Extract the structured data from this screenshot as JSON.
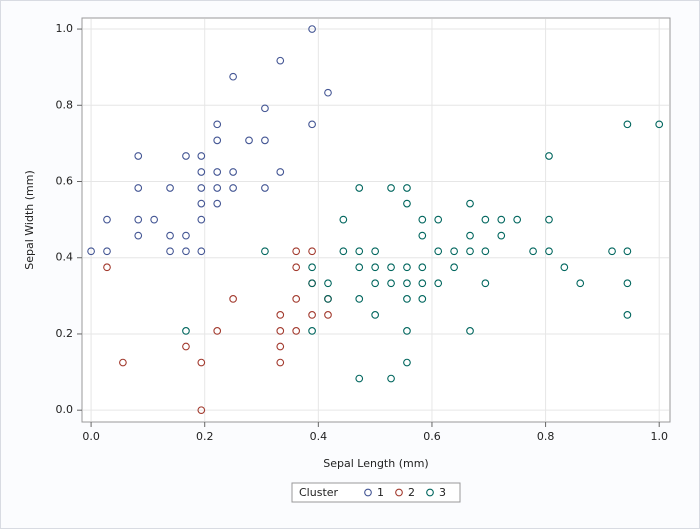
{
  "chart_data": {
    "type": "scatter",
    "x_label": "Sepal Length (mm)",
    "y_label": "Sepal Width (mm)",
    "legend_title": "Cluster",
    "legend": "bottom",
    "grid": true,
    "xlim": [
      -0.016,
      1.019
    ],
    "ylim": [
      -0.031,
      1.029
    ],
    "xticks": [
      {
        "value": 0,
        "label": "0.0"
      },
      0.2,
      0.4,
      0.6,
      0.8,
      {
        "value": 1,
        "label": "1.0"
      }
    ],
    "yticks": [
      {
        "value": 0,
        "label": "0.0"
      },
      0.2,
      0.4,
      0.6,
      0.8,
      {
        "value": 1,
        "label": "1.0"
      }
    ],
    "series": [
      {
        "name": "1",
        "color": "#445694",
        "x": [
          0.0,
          0.028,
          0.028,
          0.083,
          0.083,
          0.083,
          0.083,
          0.111,
          0.139,
          0.139,
          0.139,
          0.167,
          0.167,
          0.167,
          0.194,
          0.194,
          0.194,
          0.194,
          0.194,
          0.194,
          0.222,
          0.222,
          0.222,
          0.222,
          0.222,
          0.25,
          0.25,
          0.25,
          0.278,
          0.306,
          0.306,
          0.306,
          0.333,
          0.333,
          0.389,
          0.389,
          0.417
        ],
        "values": [
          0.417,
          0.5,
          0.417,
          0.667,
          0.583,
          0.5,
          0.458,
          0.5,
          0.583,
          0.458,
          0.417,
          0.667,
          0.458,
          0.417,
          0.667,
          0.625,
          0.583,
          0.542,
          0.5,
          0.417,
          0.75,
          0.708,
          0.625,
          0.583,
          0.542,
          0.875,
          0.625,
          0.583,
          0.708,
          0.792,
          0.708,
          0.583,
          0.917,
          0.625,
          1.0,
          0.75,
          0.833
        ]
      },
      {
        "name": "2",
        "color": "#a23a2e",
        "x": [
          0.028,
          0.056,
          0.167,
          0.194,
          0.194,
          0.222,
          0.25,
          0.333,
          0.333,
          0.333,
          0.333,
          0.361,
          0.361,
          0.361,
          0.361,
          0.389,
          0.389,
          0.389,
          0.417,
          0.417
        ],
        "values": [
          0.375,
          0.125,
          0.167,
          0.125,
          0.0,
          0.208,
          0.292,
          0.25,
          0.208,
          0.167,
          0.125,
          0.417,
          0.375,
          0.292,
          0.208,
          0.417,
          0.333,
          0.25,
          0.25,
          0.292
        ]
      },
      {
        "name": "3",
        "color": "#01665e",
        "x": [
          0.167,
          0.306,
          0.389,
          0.389,
          0.389,
          0.417,
          0.417,
          0.444,
          0.444,
          0.472,
          0.472,
          0.472,
          0.472,
          0.472,
          0.5,
          0.5,
          0.5,
          0.5,
          0.528,
          0.528,
          0.528,
          0.528,
          0.556,
          0.556,
          0.556,
          0.556,
          0.556,
          0.556,
          0.556,
          0.583,
          0.583,
          0.583,
          0.583,
          0.583,
          0.611,
          0.611,
          0.611,
          0.639,
          0.639,
          0.667,
          0.667,
          0.667,
          0.667,
          0.694,
          0.694,
          0.694,
          0.722,
          0.722,
          0.75,
          0.778,
          0.806,
          0.806,
          0.806,
          0.833,
          0.861,
          0.917,
          0.944,
          0.944,
          0.944,
          0.944,
          1.0
        ],
        "values": [
          0.208,
          0.417,
          0.375,
          0.333,
          0.208,
          0.333,
          0.292,
          0.5,
          0.417,
          0.583,
          0.417,
          0.375,
          0.292,
          0.083,
          0.417,
          0.375,
          0.333,
          0.25,
          0.583,
          0.375,
          0.333,
          0.083,
          0.583,
          0.542,
          0.375,
          0.333,
          0.292,
          0.208,
          0.125,
          0.5,
          0.458,
          0.375,
          0.333,
          0.292,
          0.5,
          0.417,
          0.333,
          0.417,
          0.375,
          0.542,
          0.458,
          0.417,
          0.208,
          0.5,
          0.417,
          0.333,
          0.5,
          0.458,
          0.5,
          0.417,
          0.667,
          0.5,
          0.417,
          0.375,
          0.333,
          0.417,
          0.75,
          0.417,
          0.333,
          0.25,
          0.75
        ]
      }
    ]
  }
}
